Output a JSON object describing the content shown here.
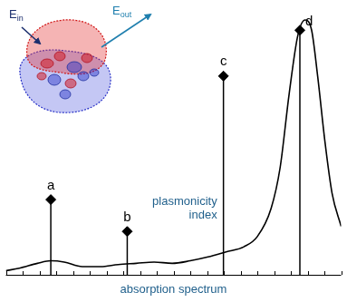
{
  "chart_data": {
    "type": "line",
    "x_label": "absorption spectrum",
    "xlim": [
      0,
      100
    ],
    "xticks": [
      0,
      5,
      10,
      15,
      20,
      25,
      30,
      35,
      40,
      45,
      50,
      55,
      60,
      65,
      70,
      75,
      80,
      85,
      90,
      95,
      100
    ],
    "ylim": [
      0,
      105
    ],
    "tick_labels": false,
    "grid": false,
    "color": "#000000",
    "x": [
      0,
      4,
      9.4,
      13.4,
      17.4,
      22.8,
      28.2,
      33.5,
      38.9,
      44.2,
      49.6,
      55,
      60.3,
      65.7,
      71,
      75,
      79.1,
      81.8,
      84.5,
      87.1,
      89.3,
      91.2,
      93,
      95.2,
      97.3,
      100
    ],
    "values": [
      1.6,
      2.6,
      4.5,
      5.5,
      5,
      3.2,
      3.2,
      4,
      4.5,
      5,
      4.5,
      5.5,
      7,
      9,
      11,
      15,
      26,
      42,
      71,
      94,
      100,
      96,
      78,
      52,
      32,
      19
    ],
    "sticks": {
      "label": "plasmonicity index",
      "x": [
        13.4,
        36.2,
        64.9,
        87.7
      ],
      "values": [
        29.5,
        17,
        78,
        96
      ],
      "labels": [
        "a",
        "b",
        "c",
        "d"
      ],
      "color": "#000000",
      "marker": "diamond"
    },
    "inset": {
      "incident": {
        "symbol": "E",
        "subscript": "in"
      },
      "outgoing": {
        "symbol": "E",
        "subscript": "out"
      }
    }
  }
}
